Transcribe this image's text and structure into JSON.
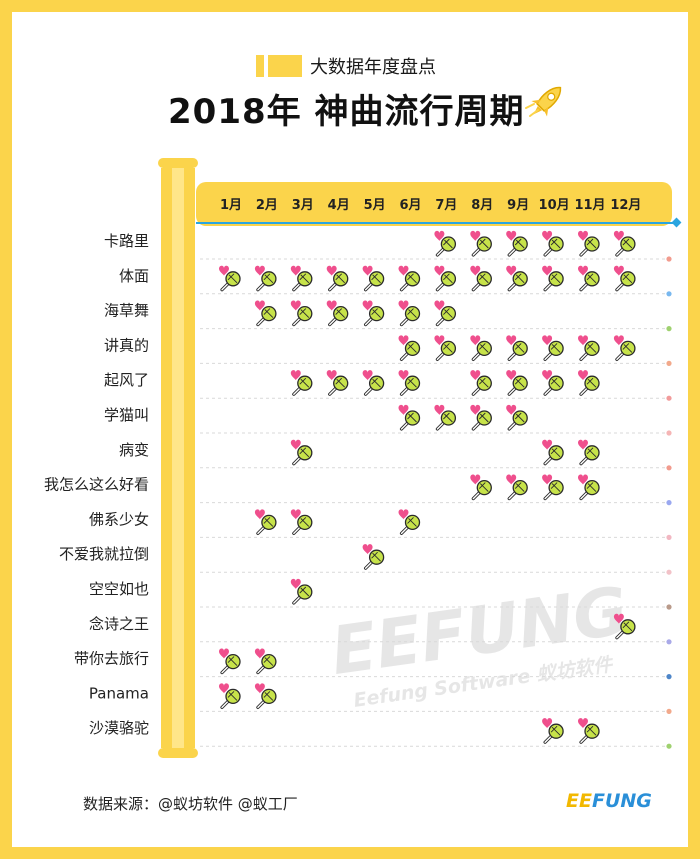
{
  "header": {
    "subtitle": "大数据年度盘点",
    "title": "2018年 神曲流行周期"
  },
  "footer": {
    "source": "数据来源：@蚁坊软件 @蚁工厂",
    "brand_left": "EE",
    "brand_right": "FUNG"
  },
  "watermark": {
    "main": "EEFUNG",
    "sub": "Eefung Software 蚁坊软件"
  },
  "colors": {
    "background": "#fbd44b",
    "timeline_bar": "#fbd44b",
    "axis_line": "#2aa5e0",
    "heart": "#ef4f8d",
    "mic_head": "#c7e34a"
  },
  "icons": {
    "mark": "heart-microphone-icon",
    "header": "rocket-icon"
  },
  "chart_data": {
    "type": "table",
    "months": [
      "1月",
      "2月",
      "3月",
      "4月",
      "5月",
      "6月",
      "7月",
      "8月",
      "9月",
      "10月",
      "11月",
      "12月"
    ],
    "rows": [
      {
        "song": "卡路里",
        "active": [
          7,
          8,
          9,
          10,
          11,
          12
        ]
      },
      {
        "song": "体面",
        "active": [
          1,
          2,
          3,
          4,
          5,
          6,
          7,
          8,
          9,
          10,
          11,
          12
        ]
      },
      {
        "song": "海草舞",
        "active": [
          2,
          3,
          4,
          5,
          6,
          7
        ]
      },
      {
        "song": "讲真的",
        "active": [
          6,
          7,
          8,
          9,
          10,
          11,
          12
        ]
      },
      {
        "song": "起风了",
        "active": [
          3,
          4,
          5,
          6,
          8,
          9,
          10,
          11
        ]
      },
      {
        "song": "学猫叫",
        "active": [
          6,
          7,
          8,
          9
        ]
      },
      {
        "song": "病变",
        "active": [
          3,
          10,
          11
        ]
      },
      {
        "song": "我怎么这么好看",
        "active": [
          8,
          9,
          10,
          11
        ]
      },
      {
        "song": "佛系少女",
        "active": [
          2,
          3,
          6
        ]
      },
      {
        "song": "不爱我就拉倒",
        "active": [
          5
        ]
      },
      {
        "song": "空空如也",
        "active": [
          3
        ]
      },
      {
        "song": "念诗之王",
        "active": [
          12
        ]
      },
      {
        "song": "带你去旅行",
        "active": [
          1,
          2
        ]
      },
      {
        "song": "Panama",
        "active": [
          1,
          2
        ]
      },
      {
        "song": "沙漠骆驼",
        "active": [
          10,
          11
        ]
      }
    ],
    "row_dot_colors": [
      "#f29b8e",
      "#79b8ef",
      "#9fd16f",
      "#f2a98b",
      "#f29b9b",
      "#f5b5b5",
      "#f29b8e",
      "#9aa8f0",
      "#f2b7c2",
      "#f2c2c8",
      "#b99a8a",
      "#a9a9e8",
      "#4e86c9",
      "#f2a98b",
      "#9fd16f"
    ]
  }
}
